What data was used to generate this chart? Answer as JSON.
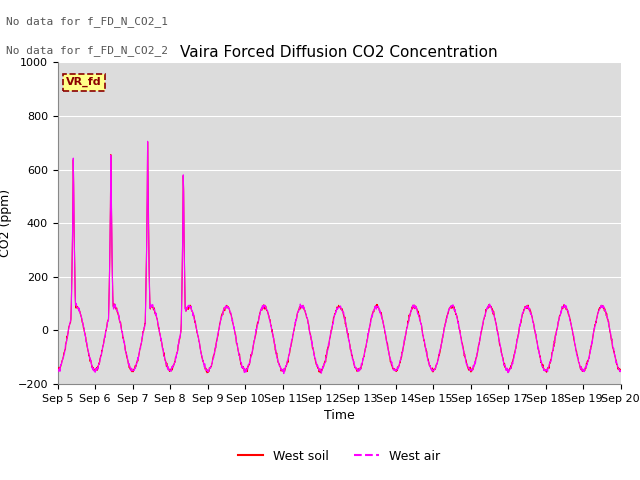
{
  "title": "Vaira Forced Diffusion CO2 Concentration",
  "ylabel": "CO2 (ppm)",
  "xlabel": "Time",
  "ylim": [
    -200,
    1000
  ],
  "yticks": [
    -200,
    0,
    200,
    400,
    600,
    800,
    1000
  ],
  "xtick_labels": [
    "Sep 5",
    "Sep 6",
    "Sep 7",
    "Sep 8",
    "Sep 9",
    "Sep 10",
    "Sep 11",
    "Sep 12",
    "Sep 13",
    "Sep 14",
    "Sep 15",
    "Sep 16",
    "Sep 17",
    "Sep 18",
    "Sep 19",
    "Sep 20"
  ],
  "no_data_text_1": "No data for f_FD_N_CO2_1",
  "no_data_text_2": "No data for f_FD_N_CO2_2",
  "legend_label_fd": "VR_fd",
  "legend_label_soil": "West soil",
  "legend_label_air": "West air",
  "line_color_soil": "#ff0000",
  "line_color_air": "#ff00ff",
  "axes_facecolor": "#dcdcdc",
  "grid_color": "#ffffff",
  "title_fontsize": 11,
  "label_fontsize": 9,
  "tick_fontsize": 8
}
